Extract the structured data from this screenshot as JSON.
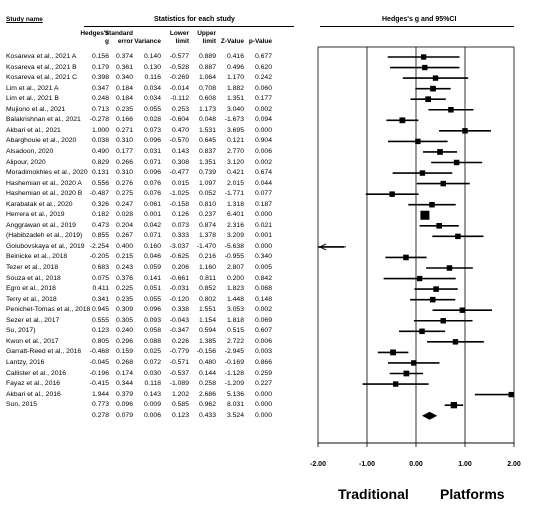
{
  "chart_data": {
    "type": "forest",
    "headers": {
      "study_name": "Study name",
      "stats_title": "Statistics for each study",
      "plot_title": "Hedges's g and 95%CI",
      "columns": [
        "Hedges's g",
        "Standard error",
        "Variance",
        "Lower limit",
        "Upper limit",
        "Z-Value",
        "p-Value"
      ]
    },
    "xlim": [
      -2,
      2
    ],
    "x_ticks": [
      "-2.00",
      "-1.00",
      "0.00",
      "1.00",
      "2.00"
    ],
    "left_label": "Traditional",
    "right_label": "Platforms",
    "rows": [
      {
        "study": "Kosareva et al., 2021 A",
        "g": "0.156",
        "se": "0.374",
        "var": "0.140",
        "lo": "-0.577",
        "hi": "0.889",
        "z": "0.416",
        "p": "0.677"
      },
      {
        "study": "Kosareva et al., 2021 B",
        "g": "0.179",
        "se": "0.361",
        "var": "0.130",
        "lo": "-0.528",
        "hi": "0.887",
        "z": "0.496",
        "p": "0.620"
      },
      {
        "study": "Kosareva et al., 2021 C",
        "g": "0.398",
        "se": "0.340",
        "var": "0.116",
        "lo": "-0.269",
        "hi": "1.064",
        "z": "1.170",
        "p": "0.242"
      },
      {
        "study": "Lim et al., 2021 A",
        "g": "0.347",
        "se": "0.184",
        "var": "0.034",
        "lo": "-0.014",
        "hi": "0.708",
        "z": "1.882",
        "p": "0.060"
      },
      {
        "study": "Lim et al., 2021 B",
        "g": "0.248",
        "se": "0.184",
        "var": "0.034",
        "lo": "-0.112",
        "hi": "0.608",
        "z": "1.351",
        "p": "0.177"
      },
      {
        "study": "Mujiono et al., 2021",
        "g": "0.713",
        "se": "0.235",
        "var": "0.055",
        "lo": "0.253",
        "hi": "1.173",
        "z": "3.040",
        "p": "0.002"
      },
      {
        "study": "Balakrishnan et al., 2021",
        "g": "-0.278",
        "se": "0.166",
        "var": "0.028",
        "lo": "-0.604",
        "hi": "0.048",
        "z": "-1.673",
        "p": "0.094"
      },
      {
        "study": "Akbari et al., 2021",
        "g": "1.000",
        "se": "0.271",
        "var": "0.073",
        "lo": "0.470",
        "hi": "1.531",
        "z": "3.695",
        "p": "0.000"
      },
      {
        "study": "Abarghouie et al., 2020",
        "g": "0.038",
        "se": "0.310",
        "var": "0.096",
        "lo": "-0.570",
        "hi": "0.645",
        "z": "0.121",
        "p": "0.904"
      },
      {
        "study": "Alsadoon, 2020",
        "g": "0.490",
        "se": "0.177",
        "var": "0.031",
        "lo": "0.143",
        "hi": "0.837",
        "z": "2.770",
        "p": "0.006"
      },
      {
        "study": "Alipour, 2020",
        "g": "0.829",
        "se": "0.266",
        "var": "0.071",
        "lo": "0.308",
        "hi": "1.351",
        "z": "3.120",
        "p": "0.002"
      },
      {
        "study": "Moradimokhles et al., 2020",
        "g": "0.131",
        "se": "0.310",
        "var": "0.096",
        "lo": "-0.477",
        "hi": "0.739",
        "z": "0.421",
        "p": "0.674"
      },
      {
        "study": "Hashemian et al., 2020 A",
        "g": "0.556",
        "se": "0.276",
        "var": "0.076",
        "lo": "0.015",
        "hi": "1.097",
        "z": "2.015",
        "p": "0.044"
      },
      {
        "study": "Hashemian et al., 2020 B",
        "g": "-0.487",
        "se": "0.275",
        "var": "0.076",
        "lo": "-1.025",
        "hi": "0.052",
        "z": "-1.771",
        "p": "0.077"
      },
      {
        "study": "Karabatak et al., 2020",
        "g": "0.326",
        "se": "0.247",
        "var": "0.061",
        "lo": "-0.158",
        "hi": "0.810",
        "z": "1.318",
        "p": "0.187"
      },
      {
        "study": "Herrera et al., 2019",
        "g": "0.182",
        "se": "0.028",
        "var": "0.001",
        "lo": "0.126",
        "hi": "0.237",
        "z": "6.401",
        "p": "0.000"
      },
      {
        "study": "Anggrawan et al., 2019",
        "g": "0.473",
        "se": "0.204",
        "var": "0.042",
        "lo": "0.073",
        "hi": "0.874",
        "z": "2.316",
        "p": "0.021"
      },
      {
        "study": "(Habibzadeh et al., 2019)",
        "g": "0.855",
        "se": "0.267",
        "var": "0.071",
        "lo": "0.333",
        "hi": "1.378",
        "z": "3.209",
        "p": "0.001"
      },
      {
        "study": "Golubovskaya et al., 2019",
        "g": "-2.254",
        "se": "0.400",
        "var": "0.160",
        "lo": "-3.037",
        "hi": "-1.470",
        "z": "-5.638",
        "p": "0.000"
      },
      {
        "study": "Beinicke et al., 2018",
        "g": "-0.205",
        "se": "0.215",
        "var": "0.046",
        "lo": "-0.625",
        "hi": "0.216",
        "z": "-0.955",
        "p": "0.340"
      },
      {
        "study": "Tezer et al., 2018",
        "g": "0.683",
        "se": "0.243",
        "var": "0.059",
        "lo": "0.206",
        "hi": "1.160",
        "z": "2.807",
        "p": "0.005"
      },
      {
        "study": "Souza et al., 2018",
        "g": "0.075",
        "se": "0.376",
        "var": "0.141",
        "lo": "-0.661",
        "hi": "0.811",
        "z": "0.200",
        "p": "0.842"
      },
      {
        "study": "Egro et al., 2018",
        "g": "0.411",
        "se": "0.225",
        "var": "0.051",
        "lo": "-0.031",
        "hi": "0.852",
        "z": "1.823",
        "p": "0.068"
      },
      {
        "study": "Terry et al., 2018",
        "g": "0.341",
        "se": "0.235",
        "var": "0.055",
        "lo": "-0.120",
        "hi": "0.802",
        "z": "1.448",
        "p": "0.148"
      },
      {
        "study": "Penichet-Tomas et al., 2018",
        "g": "0.945",
        "se": "0.309",
        "var": "0.096",
        "lo": "0.338",
        "hi": "1.551",
        "z": "3.053",
        "p": "0.002"
      },
      {
        "study": "Sezer et al., 2017",
        "g": "0.555",
        "se": "0.305",
        "var": "0.093",
        "lo": "-0.043",
        "hi": "1.154",
        "z": "1.818",
        "p": "0.069"
      },
      {
        "study": "Su, 2017)",
        "g": "0.123",
        "se": "0.240",
        "var": "0.058",
        "lo": "-0.347",
        "hi": "0.594",
        "z": "0.515",
        "p": "0.607"
      },
      {
        "study": "Kwon et al., 2017",
        "g": "0.805",
        "se": "0.296",
        "var": "0.088",
        "lo": "0.226",
        "hi": "1.385",
        "z": "2.722",
        "p": "0.006"
      },
      {
        "study": "Garratt-Reed et al., 2016",
        "g": "-0.468",
        "se": "0.159",
        "var": "0.025",
        "lo": "-0.779",
        "hi": "-0.156",
        "z": "-2.945",
        "p": "0.003"
      },
      {
        "study": "Lantzy, 2016",
        "g": "-0.045",
        "se": "0.268",
        "var": "0.072",
        "lo": "-0.571",
        "hi": "0.480",
        "z": "-0.169",
        "p": "0.866"
      },
      {
        "study": "Callister et al., 2016",
        "g": "-0.196",
        "se": "0.174",
        "var": "0.030",
        "lo": "-0.537",
        "hi": "0.144",
        "z": "-1.128",
        "p": "0.259"
      },
      {
        "study": "Fayaz et al., 2016",
        "g": "-0.415",
        "se": "0.344",
        "var": "0.118",
        "lo": "-1.089",
        "hi": "0.258",
        "z": "-1.209",
        "p": "0.227"
      },
      {
        "study": "Akbari et al., 2016",
        "g": "1.944",
        "se": "0.379",
        "var": "0.143",
        "lo": "1.202",
        "hi": "2.686",
        "z": "5.136",
        "p": "0.000"
      },
      {
        "study": "Sun, 2015",
        "g": "0.773",
        "se": "0.096",
        "var": "0.009",
        "lo": "0.585",
        "hi": "0.962",
        "z": "8.031",
        "p": "0.000"
      }
    ],
    "summary": {
      "g": "0.278",
      "se": "0.079",
      "var": "0.006",
      "lo": "0.123",
      "hi": "0.433",
      "z": "3.524",
      "p": "0.000"
    }
  }
}
